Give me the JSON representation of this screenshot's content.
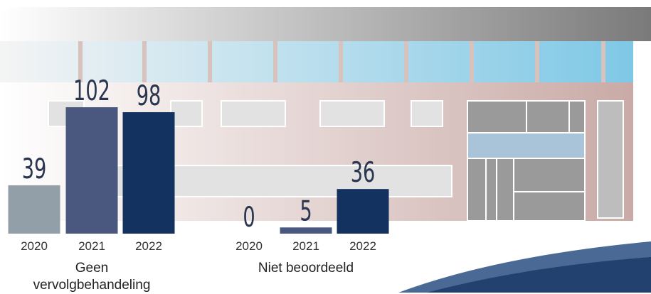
{
  "chart_data": [
    {
      "type": "bar",
      "x_label": "Geen vervolgbehandeling",
      "categories": [
        "2020",
        "2021",
        "2022"
      ],
      "values": [
        39,
        102,
        98
      ],
      "colors": [
        "#939fa8",
        "#4a5880",
        "#13325f"
      ]
    },
    {
      "type": "bar",
      "x_label": "Niet beoordeeld",
      "categories": [
        "2020",
        "2021",
        "2022"
      ],
      "values": [
        0,
        5,
        36
      ],
      "colors": [
        "#939fa8",
        "#4a5880",
        "#13325f"
      ]
    }
  ]
}
